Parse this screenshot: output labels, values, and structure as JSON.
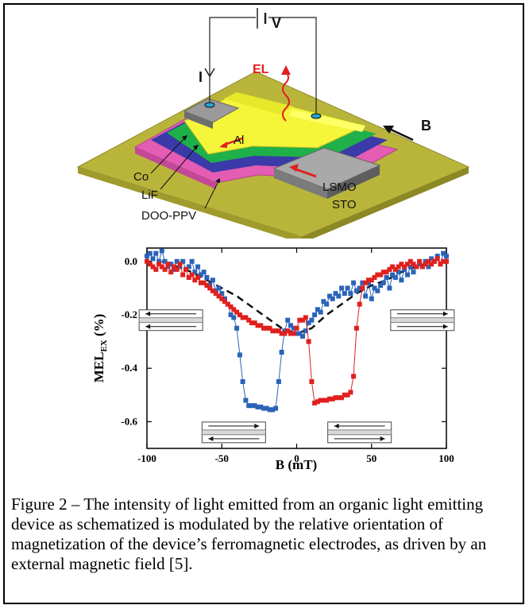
{
  "figure": {
    "caption": "Figure 2 – The intensity of light emitted from an organic light emitting device as schematized is modulated by the relative orientation of magnetization of the device’s ferromagnetic electrodes, as driven by an external magnetic field [5]."
  },
  "schematic": {
    "labels": {
      "voltage": "V",
      "current": "I",
      "emission": "EL",
      "field": "B",
      "aluminum": "Al",
      "cobalt": "Co",
      "lif": "LiF",
      "polymer": "DOO-PPV",
      "lsmo": "LSMO",
      "substrate": "STO"
    },
    "colors": {
      "substrate": "#b9b53b",
      "polymer": "#e45cb4",
      "lif": "#1fb04a",
      "cobalt": "#3a3aa8",
      "aluminum": "#f5f53a",
      "electrode": "#8a8a8a",
      "emission": "#e02020"
    }
  },
  "chart_data": {
    "type": "scatter",
    "xlabel": "B (mT)",
    "ylabel_main": "MEL",
    "ylabel_sub": "EX",
    "ylabel_unit": " (%)",
    "xlim": [
      -100,
      100
    ],
    "ylim": [
      -0.7,
      0.05
    ],
    "xticks": [
      -100,
      -50,
      0,
      50,
      100
    ],
    "yticks": [
      0.0,
      -0.2,
      -0.4,
      -0.6
    ],
    "xtick_labels": [
      "-100",
      "-50",
      "0",
      "50",
      "100"
    ],
    "ytick_labels": [
      "0.0",
      "-0.2",
      "-0.4",
      "-0.6"
    ],
    "series": [
      {
        "color": "#2a63b8",
        "x": [
          -100,
          -98,
          -96,
          -94,
          -92,
          -90,
          -88,
          -86,
          -84,
          -82,
          -80,
          -78,
          -76,
          -74,
          -72,
          -70,
          -68,
          -66,
          -64,
          -62,
          -60,
          -58,
          -56,
          -54,
          -52,
          -50,
          -48,
          -46,
          -44,
          -42,
          -40,
          -38,
          -36,
          -34,
          -32,
          -30,
          -28,
          -26,
          -24,
          -22,
          -20,
          -18,
          -16,
          -14,
          -12,
          -10,
          -8,
          -6,
          -4,
          -2,
          0,
          2,
          4,
          6,
          8,
          10,
          12,
          14,
          16,
          18,
          20,
          22,
          24,
          26,
          28,
          30,
          32,
          34,
          36,
          38,
          40,
          42,
          44,
          46,
          48,
          50,
          52,
          54,
          56,
          58,
          60,
          62,
          64,
          66,
          68,
          70,
          72,
          74,
          76,
          78,
          80,
          82,
          84,
          86,
          88,
          90,
          92,
          94,
          96,
          98,
          100
        ],
        "y": [
          0.02,
          0.03,
          0.01,
          0.03,
          0.0,
          0.04,
          0.0,
          -0.02,
          -0.01,
          -0.03,
          0.0,
          -0.02,
          0.0,
          -0.03,
          -0.02,
          0.0,
          -0.04,
          -0.02,
          -0.05,
          -0.04,
          -0.06,
          -0.09,
          -0.07,
          -0.11,
          -0.1,
          -0.12,
          -0.14,
          -0.16,
          -0.2,
          -0.21,
          -0.25,
          -0.35,
          -0.45,
          -0.52,
          -0.54,
          -0.54,
          -0.54,
          -0.545,
          -0.545,
          -0.55,
          -0.55,
          -0.555,
          -0.555,
          -0.55,
          -0.45,
          -0.34,
          -0.26,
          -0.22,
          -0.24,
          -0.25,
          -0.27,
          -0.27,
          -0.28,
          -0.26,
          -0.23,
          -0.22,
          -0.2,
          -0.18,
          -0.19,
          -0.15,
          -0.16,
          -0.13,
          -0.14,
          -0.12,
          -0.13,
          -0.1,
          -0.12,
          -0.1,
          -0.12,
          -0.08,
          -0.11,
          -0.1,
          -0.08,
          -0.13,
          -0.08,
          -0.14,
          -0.1,
          -0.11,
          -0.09,
          -0.08,
          -0.06,
          -0.1,
          -0.05,
          -0.06,
          -0.04,
          -0.07,
          -0.03,
          -0.05,
          -0.02,
          -0.04,
          -0.02,
          -0.01,
          -0.02,
          0.0,
          -0.02,
          0.01,
          0.0,
          0.02,
          -0.01,
          0.03,
          0.02
        ]
      },
      {
        "color": "#e0201e",
        "x": [
          -100,
          -98,
          -96,
          -94,
          -92,
          -90,
          -88,
          -86,
          -84,
          -82,
          -80,
          -78,
          -76,
          -74,
          -72,
          -70,
          -68,
          -66,
          -64,
          -62,
          -60,
          -58,
          -56,
          -54,
          -52,
          -50,
          -48,
          -46,
          -44,
          -42,
          -40,
          -38,
          -36,
          -34,
          -32,
          -30,
          -28,
          -26,
          -24,
          -22,
          -20,
          -18,
          -16,
          -14,
          -12,
          -10,
          -8,
          -6,
          -4,
          -2,
          0,
          2,
          4,
          6,
          8,
          10,
          12,
          14,
          16,
          18,
          20,
          22,
          24,
          26,
          28,
          30,
          32,
          34,
          36,
          38,
          40,
          42,
          44,
          46,
          48,
          50,
          52,
          54,
          56,
          58,
          60,
          62,
          64,
          66,
          68,
          70,
          72,
          74,
          76,
          78,
          80,
          82,
          84,
          86,
          88,
          90,
          92,
          94,
          96,
          98,
          100
        ],
        "y": [
          0.0,
          -0.01,
          -0.02,
          -0.03,
          -0.01,
          -0.02,
          -0.03,
          -0.01,
          -0.04,
          -0.02,
          -0.03,
          -0.01,
          -0.05,
          -0.03,
          -0.06,
          -0.05,
          -0.07,
          -0.06,
          -0.08,
          -0.08,
          -0.09,
          -0.1,
          -0.11,
          -0.12,
          -0.13,
          -0.14,
          -0.15,
          -0.16,
          -0.17,
          -0.18,
          -0.19,
          -0.2,
          -0.21,
          -0.21,
          -0.22,
          -0.23,
          -0.23,
          -0.24,
          -0.24,
          -0.25,
          -0.25,
          -0.25,
          -0.26,
          -0.26,
          -0.26,
          -0.27,
          -0.27,
          -0.26,
          -0.27,
          -0.27,
          -0.25,
          -0.22,
          -0.22,
          -0.21,
          -0.3,
          -0.45,
          -0.53,
          -0.525,
          -0.52,
          -0.52,
          -0.52,
          -0.515,
          -0.515,
          -0.51,
          -0.51,
          -0.51,
          -0.5,
          -0.5,
          -0.49,
          -0.43,
          -0.25,
          -0.16,
          -0.1,
          -0.08,
          -0.07,
          -0.07,
          -0.06,
          -0.05,
          -0.05,
          -0.04,
          -0.04,
          -0.03,
          -0.02,
          -0.03,
          -0.02,
          -0.01,
          -0.02,
          -0.01,
          0.0,
          -0.01,
          -0.02,
          0.0,
          -0.02,
          -0.01,
          0.0,
          -0.01,
          0.0,
          0.01,
          -0.01,
          0.0,
          0.0
        ]
      }
    ],
    "fit_curve": {
      "color": "#111111",
      "style": "dashed",
      "x": [
        -90,
        -80,
        -70,
        -60,
        -50,
        -40,
        -30,
        -20,
        -10,
        0,
        10,
        20,
        30,
        40,
        50,
        60,
        70,
        80,
        90
      ],
      "y": [
        0.0,
        -0.02,
        -0.04,
        -0.07,
        -0.1,
        -0.13,
        -0.17,
        -0.21,
        -0.25,
        -0.27,
        -0.25,
        -0.2,
        -0.16,
        -0.12,
        -0.09,
        -0.07,
        -0.04,
        -0.02,
        0.0
      ]
    }
  }
}
